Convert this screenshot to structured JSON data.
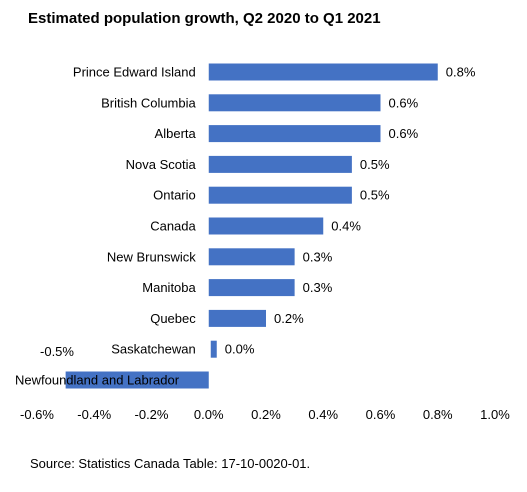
{
  "chart_data": {
    "type": "bar",
    "orientation": "horizontal",
    "title": "Estimated population growth, Q2 2020 to Q1 2021",
    "categories": [
      "Prince Edward Island",
      "British Columbia",
      "Alberta",
      "Nova Scotia",
      "Ontario",
      "Canada",
      "New Brunswick",
      "Manitoba",
      "Quebec",
      "Saskatchewan",
      "Newfoundland and Labrador"
    ],
    "values": [
      0.8,
      0.6,
      0.6,
      0.5,
      0.5,
      0.4,
      0.3,
      0.3,
      0.2,
      0.0,
      -0.5
    ],
    "data_labels": [
      "0.8%",
      "0.6%",
      "0.6%",
      "0.5%",
      "0.5%",
      "0.4%",
      "0.3%",
      "0.3%",
      "0.2%",
      "0.0%",
      "-0.5%"
    ],
    "xlim": [
      -0.6,
      1.0
    ],
    "x_ticks": [
      -0.6,
      -0.4,
      -0.2,
      0.0,
      0.2,
      0.4,
      0.6,
      0.8,
      1.0
    ],
    "x_tick_labels": [
      "-0.6%",
      "-0.4%",
      "-0.2%",
      "0.0%",
      "0.2%",
      "0.4%",
      "0.6%",
      "0.8%",
      "1.0%"
    ],
    "grid": false,
    "legend": "none",
    "bar_color": "#4472C4"
  },
  "source": "Source: Statistics Canada Table: 17-10-0020-01."
}
